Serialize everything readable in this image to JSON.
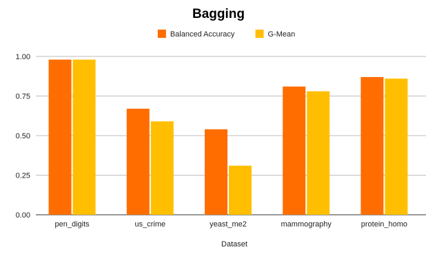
{
  "chart_data": {
    "type": "bar",
    "title": "Bagging",
    "xlabel": "Dataset",
    "ylabel": "",
    "categories": [
      "pen_digits",
      "us_crime",
      "yeast_me2",
      "mammography",
      "protein_homo"
    ],
    "series": [
      {
        "name": "Balanced Accuracy",
        "color": "#ff6d00",
        "values": [
          0.98,
          0.67,
          0.54,
          0.81,
          0.87
        ]
      },
      {
        "name": "G-Mean",
        "color": "#ffbf00",
        "values": [
          0.98,
          0.59,
          0.31,
          0.78,
          0.86
        ]
      }
    ],
    "ylim": [
      0,
      1.0
    ],
    "yticks": [
      "0.00",
      "0.25",
      "0.50",
      "0.75",
      "1.00"
    ],
    "grid": true,
    "legend_position": "top-center"
  }
}
